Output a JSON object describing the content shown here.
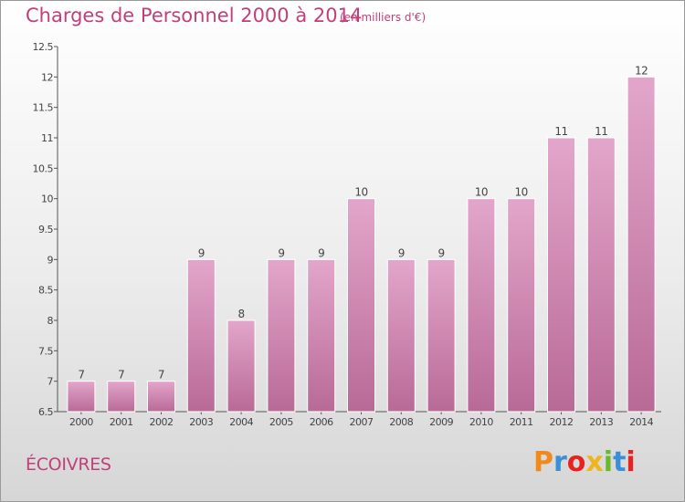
{
  "header": {
    "title": "Charges de Personnel 2000 à 2014",
    "unit_note": "(en milliers d'€)"
  },
  "footer": {
    "commune": "ÉCOIVRES",
    "logo_text": "Proxiti",
    "logo_colors": [
      "#f08a1c",
      "#3a8fd6",
      "#e8231f",
      "#f0b41c",
      "#6bb82a",
      "#3a8fd6",
      "#e8231f"
    ]
  },
  "chart_data": {
    "type": "bar",
    "title": "Charges de Personnel 2000 à 2014",
    "subtitle": "(en milliers d'€)",
    "categories": [
      "2000",
      "2001",
      "2002",
      "2003",
      "2004",
      "2005",
      "2006",
      "2007",
      "2008",
      "2009",
      "2010",
      "2011",
      "2012",
      "2013",
      "2014"
    ],
    "values": [
      7,
      7,
      7,
      9,
      8,
      9,
      9,
      10,
      9,
      9,
      10,
      10,
      11,
      11,
      12
    ],
    "data_labels": [
      "7",
      "7",
      "7",
      "9",
      "8",
      "9",
      "9",
      "10",
      "9",
      "9",
      "10",
      "10",
      "11",
      "11",
      "12"
    ],
    "ylim": [
      6.5,
      12.5
    ],
    "yticks": [
      6.5,
      7,
      7.5,
      8,
      8.5,
      9,
      9.5,
      10,
      10.5,
      11,
      11.5,
      12,
      12.5
    ],
    "ytick_labels": [
      "6.5",
      "7",
      "7.5",
      "8",
      "8.5",
      "9",
      "9.5",
      "10",
      "10.5",
      "11",
      "11.5",
      "12",
      "12.5"
    ],
    "grid": false,
    "bar_color": "#d890b8",
    "text_color": "#c0407a"
  }
}
